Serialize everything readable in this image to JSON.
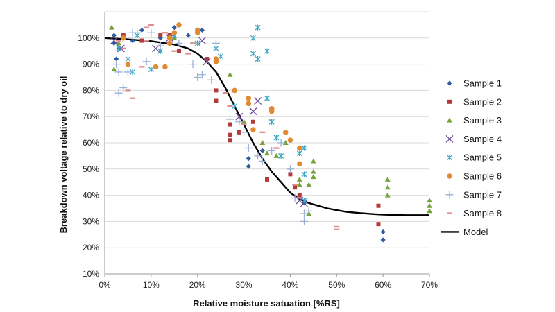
{
  "chart_data": {
    "type": "scatter",
    "title": "",
    "xlabel": "Relative moisture satuation [%RS]",
    "ylabel": "Breakdown voltage  relative to dry oil",
    "xlim": [
      0,
      70
    ],
    "ylim": [
      10,
      110
    ],
    "x_ticks": [
      "0%",
      "10%",
      "20%",
      "30%",
      "40%",
      "50%",
      "60%",
      "70%"
    ],
    "y_ticks": [
      "10%",
      "20%",
      "30%",
      "40%",
      "50%",
      "60%",
      "70%",
      "80%",
      "90%",
      "100%"
    ],
    "grid": "horizontal",
    "legend": "right",
    "series": [
      {
        "name": "Sample 1",
        "marker": "diamond",
        "color": "#2e5d9e",
        "points": [
          [
            2,
            101
          ],
          [
            2,
            98
          ],
          [
            2.5,
            92
          ],
          [
            3,
            96
          ],
          [
            4,
            101
          ],
          [
            6,
            99
          ],
          [
            8,
            103
          ],
          [
            12,
            100
          ],
          [
            14,
            101
          ],
          [
            15,
            104
          ],
          [
            18,
            101
          ],
          [
            20,
            102
          ],
          [
            21,
            103
          ],
          [
            31,
            54
          ],
          [
            31,
            51
          ],
          [
            34,
            57
          ],
          [
            43,
            37
          ],
          [
            60,
            26
          ],
          [
            60,
            23
          ]
        ]
      },
      {
        "name": "Sample 2",
        "marker": "square",
        "color": "#b23a38",
        "points": [
          [
            4,
            101
          ],
          [
            8,
            99
          ],
          [
            12,
            101
          ],
          [
            14,
            101
          ],
          [
            16,
            95
          ],
          [
            22,
            92
          ],
          [
            24,
            80
          ],
          [
            24,
            76
          ],
          [
            27,
            67
          ],
          [
            27,
            63
          ],
          [
            27,
            61
          ],
          [
            29,
            64
          ],
          [
            32,
            68
          ],
          [
            35,
            46
          ],
          [
            40,
            48
          ],
          [
            41,
            43
          ],
          [
            42,
            40
          ],
          [
            59,
            36
          ],
          [
            59,
            29
          ]
        ]
      },
      {
        "name": "Sample 3",
        "marker": "triangle",
        "color": "#77a33a",
        "points": [
          [
            1.5,
            104
          ],
          [
            2,
            88
          ],
          [
            3,
            98
          ],
          [
            15,
            100
          ],
          [
            27,
            86
          ],
          [
            28,
            80
          ],
          [
            30,
            68
          ],
          [
            34,
            60
          ],
          [
            35,
            56
          ],
          [
            37,
            55
          ],
          [
            39,
            60
          ],
          [
            42,
            46
          ],
          [
            42,
            44
          ],
          [
            44,
            33
          ],
          [
            44,
            44
          ],
          [
            45,
            53
          ],
          [
            45,
            49
          ],
          [
            45,
            47
          ],
          [
            61,
            46
          ],
          [
            61,
            43
          ],
          [
            61,
            40
          ],
          [
            70,
            38
          ],
          [
            70,
            36
          ],
          [
            70,
            34
          ]
        ]
      },
      {
        "name": "Sample 4",
        "marker": "x",
        "color": "#6a4c9c",
        "points": [
          [
            2,
            99
          ],
          [
            3.5,
            96
          ],
          [
            11,
            96
          ],
          [
            14,
            100
          ],
          [
            21,
            99
          ],
          [
            22,
            91
          ],
          [
            29,
            70
          ],
          [
            32,
            72
          ],
          [
            33,
            76
          ],
          [
            42,
            38
          ],
          [
            43,
            37
          ]
        ]
      },
      {
        "name": "Sample 5",
        "marker": "star",
        "color": "#3aa6c4",
        "points": [
          [
            3,
            96
          ],
          [
            5,
            92
          ],
          [
            6,
            87
          ],
          [
            7,
            101
          ],
          [
            10,
            88
          ],
          [
            12,
            95
          ],
          [
            15,
            101
          ],
          [
            20,
            98
          ],
          [
            24,
            96
          ],
          [
            25,
            93
          ],
          [
            28,
            74
          ],
          [
            32,
            100
          ],
          [
            32,
            94
          ],
          [
            33,
            92
          ],
          [
            33,
            104
          ],
          [
            35,
            95
          ],
          [
            35,
            77
          ],
          [
            36,
            68
          ],
          [
            37,
            62
          ],
          [
            38,
            55
          ],
          [
            42,
            56
          ],
          [
            43,
            58
          ],
          [
            43,
            48
          ],
          [
            43,
            38
          ]
        ]
      },
      {
        "name": "Sample 6",
        "marker": "circle",
        "color": "#e18a34",
        "points": [
          [
            4,
            100
          ],
          [
            5,
            90
          ],
          [
            11,
            89
          ],
          [
            13,
            89
          ],
          [
            14,
            98
          ],
          [
            14,
            100
          ],
          [
            15,
            102
          ],
          [
            16,
            105
          ],
          [
            20,
            103
          ],
          [
            20,
            102
          ],
          [
            24,
            91
          ],
          [
            24,
            92
          ],
          [
            28,
            80
          ],
          [
            31,
            77
          ],
          [
            31,
            75
          ],
          [
            32,
            65
          ],
          [
            36,
            73
          ],
          [
            36,
            72
          ],
          [
            39,
            64
          ],
          [
            40,
            61
          ],
          [
            42,
            58
          ],
          [
            42,
            52
          ]
        ]
      },
      {
        "name": "Sample 7",
        "marker": "plus",
        "color": "#99b0d6",
        "points": [
          [
            2.5,
            90
          ],
          [
            3,
            87
          ],
          [
            3,
            79
          ],
          [
            4,
            81
          ],
          [
            5,
            87
          ],
          [
            6,
            102
          ],
          [
            7,
            102
          ],
          [
            9,
            91
          ],
          [
            10,
            102
          ],
          [
            12,
            97
          ],
          [
            16,
            98
          ],
          [
            19,
            90
          ],
          [
            20,
            85
          ],
          [
            21,
            86
          ],
          [
            23,
            84
          ],
          [
            24,
            98
          ],
          [
            27,
            69
          ],
          [
            29,
            68
          ],
          [
            30,
            64
          ],
          [
            31,
            58
          ],
          [
            33,
            55
          ],
          [
            34,
            53
          ],
          [
            36,
            57
          ],
          [
            38,
            60
          ],
          [
            40,
            50
          ],
          [
            41,
            39
          ],
          [
            43,
            30
          ],
          [
            43,
            33
          ],
          [
            44,
            34
          ]
        ]
      },
      {
        "name": "Sample 8",
        "marker": "dash",
        "color": "#e08f8f",
        "points": [
          [
            3,
            99
          ],
          [
            4,
            96
          ],
          [
            5,
            80
          ],
          [
            6,
            77
          ],
          [
            8,
            89
          ],
          [
            9,
            104
          ],
          [
            9,
            99
          ],
          [
            10,
            105
          ],
          [
            13,
            102
          ],
          [
            15,
            95
          ],
          [
            18,
            94
          ],
          [
            19,
            98
          ],
          [
            26,
            79
          ],
          [
            27,
            74
          ],
          [
            30,
            67
          ],
          [
            34,
            64
          ],
          [
            37,
            58
          ],
          [
            41,
            44
          ],
          [
            42,
            39
          ],
          [
            50,
            28
          ],
          [
            50,
            27
          ]
        ]
      },
      {
        "name": "Model",
        "marker": "line",
        "color": "#000000",
        "points": [
          [
            0,
            100
          ],
          [
            5,
            99.5
          ],
          [
            10,
            98.8
          ],
          [
            15,
            97.5
          ],
          [
            18,
            96
          ],
          [
            20,
            94
          ],
          [
            22,
            91
          ],
          [
            24,
            87
          ],
          [
            26,
            81
          ],
          [
            28,
            74
          ],
          [
            30,
            67
          ],
          [
            32,
            60
          ],
          [
            34,
            54
          ],
          [
            36,
            49
          ],
          [
            38,
            45
          ],
          [
            40,
            41
          ],
          [
            42,
            38.5
          ],
          [
            44,
            37
          ],
          [
            46,
            36
          ],
          [
            48,
            35
          ],
          [
            50,
            34.3
          ],
          [
            52,
            33.7
          ],
          [
            55,
            33.2
          ],
          [
            58,
            32.8
          ],
          [
            60,
            32.6
          ],
          [
            62,
            32.5
          ],
          [
            65,
            32.4
          ],
          [
            70,
            32.4
          ]
        ]
      }
    ]
  }
}
